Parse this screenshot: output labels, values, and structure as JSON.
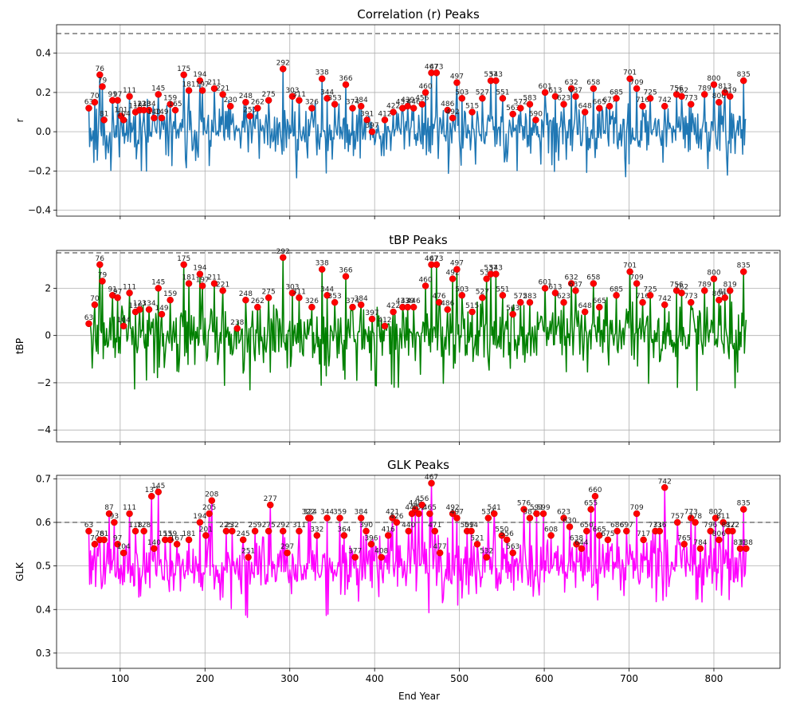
{
  "figure": {
    "xlabel": "End Year"
  },
  "chart_data": [
    {
      "type": "line",
      "id": "r",
      "title": "Correlation (r) Peaks",
      "xlabel": "End Year",
      "ylabel": "r",
      "xlim": [
        25,
        878
      ],
      "ylim": [
        -0.43,
        0.545
      ],
      "xticks": [
        100,
        200,
        300,
        400,
        500,
        600,
        700,
        800
      ],
      "yticks": [
        -0.4,
        -0.2,
        0.0,
        0.2,
        0.4
      ],
      "ytick_labels": [
        "−0.4",
        "−0.2",
        "0.0",
        "0.2",
        "0.4"
      ],
      "threshold": 0.5,
      "line_color": "#1f77b4",
      "base": 0.0,
      "amp": 0.1,
      "min": -0.39,
      "seed": 11,
      "x_start": 63,
      "x_end": 838,
      "peaks": [
        {
          "x": 63,
          "y": 0.12
        },
        {
          "x": 70,
          "y": 0.15
        },
        {
          "x": 76,
          "y": 0.29
        },
        {
          "x": 79,
          "y": 0.23
        },
        {
          "x": 81,
          "y": 0.06
        },
        {
          "x": 91,
          "y": 0.16
        },
        {
          "x": 97,
          "y": 0.16
        },
        {
          "x": 101,
          "y": 0.08
        },
        {
          "x": 104,
          "y": 0.06
        },
        {
          "x": 111,
          "y": 0.18
        },
        {
          "x": 118,
          "y": 0.1
        },
        {
          "x": 123,
          "y": 0.11
        },
        {
          "x": 128,
          "y": 0.11
        },
        {
          "x": 134,
          "y": 0.11
        },
        {
          "x": 140,
          "y": 0.07
        },
        {
          "x": 145,
          "y": 0.19
        },
        {
          "x": 149,
          "y": 0.07
        },
        {
          "x": 159,
          "y": 0.14
        },
        {
          "x": 165,
          "y": 0.11
        },
        {
          "x": 175,
          "y": 0.29
        },
        {
          "x": 181,
          "y": 0.21
        },
        {
          "x": 194,
          "y": 0.26
        },
        {
          "x": 197,
          "y": 0.21
        },
        {
          "x": 211,
          "y": 0.22
        },
        {
          "x": 221,
          "y": 0.19
        },
        {
          "x": 230,
          "y": 0.13
        },
        {
          "x": 248,
          "y": 0.15
        },
        {
          "x": 253,
          "y": 0.08
        },
        {
          "x": 262,
          "y": 0.12
        },
        {
          "x": 275,
          "y": 0.16
        },
        {
          "x": 292,
          "y": 0.32
        },
        {
          "x": 303,
          "y": 0.18
        },
        {
          "x": 311,
          "y": 0.16
        },
        {
          "x": 326,
          "y": 0.12
        },
        {
          "x": 338,
          "y": 0.27
        },
        {
          "x": 344,
          "y": 0.17
        },
        {
          "x": 353,
          "y": 0.14
        },
        {
          "x": 366,
          "y": 0.24
        },
        {
          "x": 374,
          "y": 0.12
        },
        {
          "x": 384,
          "y": 0.13
        },
        {
          "x": 391,
          "y": 0.06
        },
        {
          "x": 397,
          "y": 0.0
        },
        {
          "x": 412,
          "y": 0.06
        },
        {
          "x": 422,
          "y": 0.1
        },
        {
          "x": 433,
          "y": 0.12
        },
        {
          "x": 439,
          "y": 0.13
        },
        {
          "x": 446,
          "y": 0.12
        },
        {
          "x": 456,
          "y": 0.14
        },
        {
          "x": 460,
          "y": 0.2
        },
        {
          "x": 467,
          "y": 0.3
        },
        {
          "x": 473,
          "y": 0.3
        },
        {
          "x": 486,
          "y": 0.11
        },
        {
          "x": 492,
          "y": 0.07
        },
        {
          "x": 497,
          "y": 0.25
        },
        {
          "x": 503,
          "y": 0.17
        },
        {
          "x": 515,
          "y": 0.1
        },
        {
          "x": 527,
          "y": 0.17
        },
        {
          "x": 537,
          "y": 0.26
        },
        {
          "x": 543,
          "y": 0.26
        },
        {
          "x": 551,
          "y": 0.17
        },
        {
          "x": 563,
          "y": 0.09
        },
        {
          "x": 572,
          "y": 0.12
        },
        {
          "x": 583,
          "y": 0.14
        },
        {
          "x": 590,
          "y": 0.06
        },
        {
          "x": 601,
          "y": 0.2
        },
        {
          "x": 613,
          "y": 0.18
        },
        {
          "x": 623,
          "y": 0.14
        },
        {
          "x": 632,
          "y": 0.22
        },
        {
          "x": 637,
          "y": 0.18
        },
        {
          "x": 648,
          "y": 0.1
        },
        {
          "x": 658,
          "y": 0.22
        },
        {
          "x": 665,
          "y": 0.12
        },
        {
          "x": 677,
          "y": 0.13
        },
        {
          "x": 685,
          "y": 0.17
        },
        {
          "x": 701,
          "y": 0.27
        },
        {
          "x": 709,
          "y": 0.22
        },
        {
          "x": 716,
          "y": 0.13
        },
        {
          "x": 725,
          "y": 0.17
        },
        {
          "x": 742,
          "y": 0.13
        },
        {
          "x": 756,
          "y": 0.19
        },
        {
          "x": 762,
          "y": 0.18
        },
        {
          "x": 773,
          "y": 0.14
        },
        {
          "x": 789,
          "y": 0.19
        },
        {
          "x": 800,
          "y": 0.24
        },
        {
          "x": 806,
          "y": 0.15
        },
        {
          "x": 813,
          "y": 0.2
        },
        {
          "x": 819,
          "y": 0.18
        },
        {
          "x": 835,
          "y": 0.26
        }
      ]
    },
    {
      "type": "line",
      "id": "tbp",
      "title": "tBP Peaks",
      "xlabel": "End Year",
      "ylabel": "tBP",
      "xlim": [
        25,
        878
      ],
      "ylim": [
        -4.5,
        3.6
      ],
      "xticks": [
        100,
        200,
        300,
        400,
        500,
        600,
        700,
        800
      ],
      "yticks": [
        -4,
        -2,
        0,
        2
      ],
      "ytick_labels": [
        "−4",
        "−2",
        "0",
        "2"
      ],
      "threshold": 3.5,
      "line_color": "#008000",
      "base": 0.0,
      "amp": 1.0,
      "min": -4.15,
      "seed": 29,
      "x_start": 63,
      "x_end": 838,
      "peaks": [
        {
          "x": 63,
          "y": 0.5
        },
        {
          "x": 70,
          "y": 1.3
        },
        {
          "x": 76,
          "y": 3.0
        },
        {
          "x": 79,
          "y": 2.3
        },
        {
          "x": 91,
          "y": 1.7
        },
        {
          "x": 97,
          "y": 1.6
        },
        {
          "x": 104,
          "y": 0.4
        },
        {
          "x": 111,
          "y": 1.8
        },
        {
          "x": 118,
          "y": 1.0
        },
        {
          "x": 123,
          "y": 1.1
        },
        {
          "x": 134,
          "y": 1.1
        },
        {
          "x": 145,
          "y": 2.0
        },
        {
          "x": 149,
          "y": 0.9
        },
        {
          "x": 159,
          "y": 1.5
        },
        {
          "x": 175,
          "y": 3.0
        },
        {
          "x": 181,
          "y": 2.2
        },
        {
          "x": 194,
          "y": 2.6
        },
        {
          "x": 197,
          "y": 2.1
        },
        {
          "x": 211,
          "y": 2.2
        },
        {
          "x": 221,
          "y": 1.9
        },
        {
          "x": 238,
          "y": 0.3
        },
        {
          "x": 248,
          "y": 1.5
        },
        {
          "x": 262,
          "y": 1.2
        },
        {
          "x": 275,
          "y": 1.6
        },
        {
          "x": 292,
          "y": 3.3
        },
        {
          "x": 303,
          "y": 1.8
        },
        {
          "x": 311,
          "y": 1.6
        },
        {
          "x": 326,
          "y": 1.2
        },
        {
          "x": 338,
          "y": 2.8
        },
        {
          "x": 344,
          "y": 1.7
        },
        {
          "x": 353,
          "y": 1.4
        },
        {
          "x": 366,
          "y": 2.5
        },
        {
          "x": 374,
          "y": 1.2
        },
        {
          "x": 384,
          "y": 1.3
        },
        {
          "x": 397,
          "y": 0.7
        },
        {
          "x": 412,
          "y": 0.4
        },
        {
          "x": 422,
          "y": 1.0
        },
        {
          "x": 433,
          "y": 1.2
        },
        {
          "x": 439,
          "y": 1.2
        },
        {
          "x": 446,
          "y": 1.2
        },
        {
          "x": 460,
          "y": 2.1
        },
        {
          "x": 467,
          "y": 3.0
        },
        {
          "x": 473,
          "y": 3.0
        },
        {
          "x": 476,
          "y": 1.4
        },
        {
          "x": 486,
          "y": 1.1
        },
        {
          "x": 492,
          "y": 2.4
        },
        {
          "x": 497,
          "y": 2.8
        },
        {
          "x": 503,
          "y": 1.7
        },
        {
          "x": 515,
          "y": 1.0
        },
        {
          "x": 527,
          "y": 1.6
        },
        {
          "x": 532,
          "y": 2.4
        },
        {
          "x": 537,
          "y": 2.6
        },
        {
          "x": 543,
          "y": 2.6
        },
        {
          "x": 551,
          "y": 1.7
        },
        {
          "x": 563,
          "y": 0.9
        },
        {
          "x": 572,
          "y": 1.4
        },
        {
          "x": 583,
          "y": 1.4
        },
        {
          "x": 601,
          "y": 2.0
        },
        {
          "x": 613,
          "y": 1.8
        },
        {
          "x": 623,
          "y": 1.4
        },
        {
          "x": 632,
          "y": 2.2
        },
        {
          "x": 637,
          "y": 1.9
        },
        {
          "x": 648,
          "y": 1.0
        },
        {
          "x": 658,
          "y": 2.2
        },
        {
          "x": 665,
          "y": 1.2
        },
        {
          "x": 685,
          "y": 1.7
        },
        {
          "x": 701,
          "y": 2.7
        },
        {
          "x": 709,
          "y": 2.2
        },
        {
          "x": 716,
          "y": 1.4
        },
        {
          "x": 725,
          "y": 1.7
        },
        {
          "x": 742,
          "y": 1.3
        },
        {
          "x": 756,
          "y": 1.9
        },
        {
          "x": 762,
          "y": 1.8
        },
        {
          "x": 773,
          "y": 1.4
        },
        {
          "x": 789,
          "y": 1.9
        },
        {
          "x": 800,
          "y": 2.4
        },
        {
          "x": 806,
          "y": 1.5
        },
        {
          "x": 813,
          "y": 1.6
        },
        {
          "x": 819,
          "y": 1.9
        },
        {
          "x": 835,
          "y": 2.7
        }
      ]
    },
    {
      "type": "line",
      "id": "glk",
      "title": "GLK Peaks",
      "xlabel": "End Year",
      "ylabel": "GLK",
      "xlim": [
        25,
        878
      ],
      "ylim": [
        0.265,
        0.708
      ],
      "xticks": [
        100,
        200,
        300,
        400,
        500,
        600,
        700,
        800
      ],
      "yticks": [
        0.3,
        0.4,
        0.5,
        0.6,
        0.7
      ],
      "ytick_labels": [
        "0.3",
        "0.4",
        "0.5",
        "0.6",
        "0.7"
      ],
      "threshold": 0.6,
      "line_color": "#ff00ff",
      "base": 0.5,
      "amp": 0.05,
      "min": 0.28,
      "seed": 47,
      "x_start": 63,
      "x_end": 838,
      "peaks": [
        {
          "x": 63,
          "y": 0.58
        },
        {
          "x": 70,
          "y": 0.55
        },
        {
          "x": 76,
          "y": 0.56
        },
        {
          "x": 81,
          "y": 0.56
        },
        {
          "x": 87,
          "y": 0.62
        },
        {
          "x": 93,
          "y": 0.6
        },
        {
          "x": 97,
          "y": 0.55
        },
        {
          "x": 104,
          "y": 0.53
        },
        {
          "x": 111,
          "y": 0.62
        },
        {
          "x": 118,
          "y": 0.58
        },
        {
          "x": 128,
          "y": 0.58
        },
        {
          "x": 137,
          "y": 0.66
        },
        {
          "x": 140,
          "y": 0.54
        },
        {
          "x": 145,
          "y": 0.67
        },
        {
          "x": 153,
          "y": 0.56
        },
        {
          "x": 159,
          "y": 0.56
        },
        {
          "x": 167,
          "y": 0.55
        },
        {
          "x": 181,
          "y": 0.56
        },
        {
          "x": 194,
          "y": 0.6
        },
        {
          "x": 201,
          "y": 0.57
        },
        {
          "x": 205,
          "y": 0.62
        },
        {
          "x": 208,
          "y": 0.65
        },
        {
          "x": 225,
          "y": 0.58
        },
        {
          "x": 232,
          "y": 0.58
        },
        {
          "x": 245,
          "y": 0.56
        },
        {
          "x": 251,
          "y": 0.52
        },
        {
          "x": 259,
          "y": 0.58
        },
        {
          "x": 275,
          "y": 0.58
        },
        {
          "x": 277,
          "y": 0.64
        },
        {
          "x": 292,
          "y": 0.58
        },
        {
          "x": 297,
          "y": 0.53
        },
        {
          "x": 311,
          "y": 0.58
        },
        {
          "x": 322,
          "y": 0.61
        },
        {
          "x": 324,
          "y": 0.61
        },
        {
          "x": 332,
          "y": 0.57
        },
        {
          "x": 344,
          "y": 0.61
        },
        {
          "x": 359,
          "y": 0.61
        },
        {
          "x": 364,
          "y": 0.57
        },
        {
          "x": 377,
          "y": 0.52
        },
        {
          "x": 384,
          "y": 0.61
        },
        {
          "x": 390,
          "y": 0.58
        },
        {
          "x": 396,
          "y": 0.55
        },
        {
          "x": 408,
          "y": 0.52
        },
        {
          "x": 416,
          "y": 0.57
        },
        {
          "x": 421,
          "y": 0.61
        },
        {
          "x": 426,
          "y": 0.6
        },
        {
          "x": 440,
          "y": 0.58
        },
        {
          "x": 444,
          "y": 0.62
        },
        {
          "x": 448,
          "y": 0.63
        },
        {
          "x": 452,
          "y": 0.62
        },
        {
          "x": 456,
          "y": 0.64
        },
        {
          "x": 465,
          "y": 0.62
        },
        {
          "x": 467,
          "y": 0.69
        },
        {
          "x": 471,
          "y": 0.58
        },
        {
          "x": 477,
          "y": 0.53
        },
        {
          "x": 492,
          "y": 0.62
        },
        {
          "x": 497,
          "y": 0.61
        },
        {
          "x": 509,
          "y": 0.58
        },
        {
          "x": 514,
          "y": 0.58
        },
        {
          "x": 521,
          "y": 0.55
        },
        {
          "x": 532,
          "y": 0.52
        },
        {
          "x": 534,
          "y": 0.61
        },
        {
          "x": 541,
          "y": 0.62
        },
        {
          "x": 550,
          "y": 0.57
        },
        {
          "x": 556,
          "y": 0.56
        },
        {
          "x": 563,
          "y": 0.53
        },
        {
          "x": 576,
          "y": 0.63
        },
        {
          "x": 583,
          "y": 0.61
        },
        {
          "x": 591,
          "y": 0.62
        },
        {
          "x": 599,
          "y": 0.62
        },
        {
          "x": 608,
          "y": 0.57
        },
        {
          "x": 623,
          "y": 0.61
        },
        {
          "x": 630,
          "y": 0.59
        },
        {
          "x": 638,
          "y": 0.55
        },
        {
          "x": 644,
          "y": 0.54
        },
        {
          "x": 650,
          "y": 0.58
        },
        {
          "x": 655,
          "y": 0.63
        },
        {
          "x": 660,
          "y": 0.66
        },
        {
          "x": 665,
          "y": 0.57
        },
        {
          "x": 675,
          "y": 0.56
        },
        {
          "x": 686,
          "y": 0.58
        },
        {
          "x": 697,
          "y": 0.58
        },
        {
          "x": 709,
          "y": 0.62
        },
        {
          "x": 717,
          "y": 0.56
        },
        {
          "x": 731,
          "y": 0.58
        },
        {
          "x": 736,
          "y": 0.58
        },
        {
          "x": 742,
          "y": 0.68
        },
        {
          "x": 757,
          "y": 0.6
        },
        {
          "x": 765,
          "y": 0.55
        },
        {
          "x": 773,
          "y": 0.61
        },
        {
          "x": 778,
          "y": 0.6
        },
        {
          "x": 784,
          "y": 0.54
        },
        {
          "x": 796,
          "y": 0.58
        },
        {
          "x": 802,
          "y": 0.61
        },
        {
          "x": 806,
          "y": 0.56
        },
        {
          "x": 811,
          "y": 0.6
        },
        {
          "x": 817,
          "y": 0.58
        },
        {
          "x": 822,
          "y": 0.58
        },
        {
          "x": 831,
          "y": 0.54
        },
        {
          "x": 835,
          "y": 0.63
        },
        {
          "x": 838,
          "y": 0.54
        }
      ]
    }
  ]
}
